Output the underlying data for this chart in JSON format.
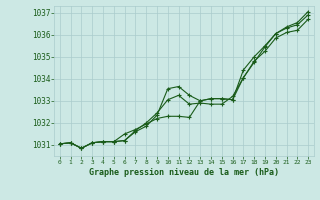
{
  "bg_color": "#cce8e4",
  "grid_color": "#aacccc",
  "line_color": "#1a5c1a",
  "marker_color": "#1a5c1a",
  "xlabel": "Graphe pression niveau de la mer (hPa)",
  "xlabel_color": "#1a5c1a",
  "ylim": [
    1030.5,
    1037.3
  ],
  "xlim": [
    -0.5,
    23.5
  ],
  "yticks": [
    1031,
    1032,
    1033,
    1034,
    1035,
    1036,
    1037
  ],
  "xticks": [
    0,
    1,
    2,
    3,
    4,
    5,
    6,
    7,
    8,
    9,
    10,
    11,
    12,
    13,
    14,
    15,
    16,
    17,
    18,
    19,
    20,
    21,
    22,
    23
  ],
  "series": [
    [
      1031.05,
      1031.1,
      1030.85,
      1031.1,
      1031.15,
      1031.15,
      1031.5,
      1031.7,
      1031.95,
      1032.2,
      1032.3,
      1032.3,
      1032.25,
      1033.0,
      1033.1,
      1033.1,
      1033.05,
      1034.4,
      1035.0,
      1035.5,
      1036.05,
      1036.35,
      1036.55,
      1037.05
    ],
    [
      1031.05,
      1031.1,
      1030.85,
      1031.1,
      1031.15,
      1031.15,
      1031.2,
      1031.65,
      1032.0,
      1032.45,
      1033.05,
      1033.25,
      1032.85,
      1032.9,
      1032.85,
      1032.85,
      1033.2,
      1034.05,
      1034.8,
      1035.25,
      1035.85,
      1036.1,
      1036.2,
      1036.7
    ],
    [
      1031.05,
      1031.1,
      1030.85,
      1031.1,
      1031.15,
      1031.15,
      1031.2,
      1031.6,
      1031.85,
      1032.35,
      1033.55,
      1033.65,
      1033.25,
      1033.0,
      1033.1,
      1033.1,
      1033.05,
      1034.05,
      1034.75,
      1035.45,
      1036.05,
      1036.3,
      1036.45,
      1036.9
    ]
  ]
}
